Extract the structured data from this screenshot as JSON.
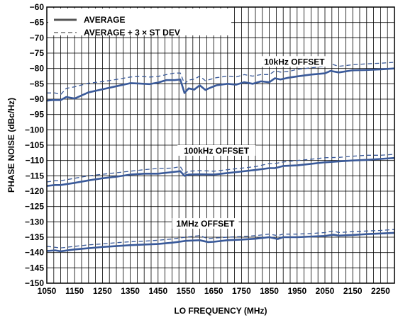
{
  "chart_data": {
    "type": "line",
    "xlabel": "LO FREQUENCY (MHz)",
    "ylabel": "PHASE NOISE (dBc/Hz)",
    "xlim": [
      1050,
      2300
    ],
    "ylim": [
      -150,
      -60
    ],
    "x_ticks": [
      1050,
      1150,
      1250,
      1350,
      1450,
      1550,
      1650,
      1750,
      1850,
      1950,
      2050,
      2150,
      2250
    ],
    "y_ticks": [
      -60,
      -65,
      -70,
      -75,
      -80,
      -85,
      -90,
      -95,
      -100,
      -105,
      -110,
      -115,
      -120,
      -125,
      -130,
      -135,
      -140,
      -145,
      -150
    ],
    "x_tick_labels": [
      "1050",
      "1150",
      "1250",
      "1350",
      "1450",
      "1550",
      "1650",
      "1750",
      "1850",
      "1950",
      "2050",
      "2150",
      "2250"
    ],
    "y_tick_labels": [
      "−60",
      "−65",
      "−70",
      "−75",
      "−80",
      "−85",
      "−90",
      "−95",
      "−100",
      "−105",
      "−110",
      "−115",
      "−120",
      "−125",
      "−130",
      "−135",
      "−140",
      "−145",
      "−150"
    ],
    "grid": true,
    "legend": {
      "position": "top-left",
      "entries": [
        {
          "label": "AVERAGE",
          "style": "solid"
        },
        {
          "label": "AVERAGE + 3 × ST DEV",
          "style": "dashed"
        }
      ]
    },
    "colors": {
      "average": "#3a5a9a",
      "average_3sd": "#3a5a9a",
      "grid": "#000000"
    },
    "annotations": [
      {
        "text": "10kHz OFFSET",
        "x": 1940,
        "y": -78.3
      },
      {
        "text": "100kHz OFFSET",
        "x": 1660,
        "y": -107.3
      },
      {
        "text": "1MHz OFFSET",
        "x": 1620,
        "y": -131.1
      }
    ],
    "series": [
      {
        "group": "10kHz OFFSET",
        "style": "solid",
        "x": [
          1050,
          1070,
          1100,
          1120,
          1150,
          1200,
          1250,
          1300,
          1350,
          1380,
          1420,
          1450,
          1480,
          1510,
          1530,
          1545,
          1560,
          1580,
          1600,
          1620,
          1640,
          1660,
          1700,
          1730,
          1760,
          1790,
          1820,
          1850,
          1870,
          1890,
          1920,
          1950,
          2000,
          2050,
          2070,
          2100,
          2150,
          2200,
          2250,
          2300
        ],
        "y": [
          -90.5,
          -90.3,
          -90.3,
          -89.3,
          -89.8,
          -87.8,
          -86.8,
          -85.8,
          -84.8,
          -84.9,
          -85.1,
          -84.6,
          -83.8,
          -83.8,
          -83.6,
          -88.0,
          -86.5,
          -86.9,
          -85.5,
          -87.0,
          -86.2,
          -85.5,
          -85.0,
          -85.3,
          -84.5,
          -85.0,
          -84.2,
          -84.5,
          -83.2,
          -83.6,
          -83.0,
          -82.6,
          -82.0,
          -81.6,
          -80.8,
          -81.3,
          -80.6,
          -80.5,
          -80.3,
          -80.0
        ]
      },
      {
        "group": "10kHz OFFSET",
        "style": "dashed",
        "x": [
          1050,
          1080,
          1100,
          1120,
          1150,
          1200,
          1250,
          1300,
          1350,
          1380,
          1420,
          1450,
          1480,
          1510,
          1530,
          1545,
          1560,
          1580,
          1600,
          1620,
          1640,
          1660,
          1700,
          1730,
          1760,
          1790,
          1820,
          1850,
          1870,
          1890,
          1920,
          1950,
          2000,
          2050,
          2070,
          2100,
          2150,
          2200,
          2250,
          2300
        ],
        "y": [
          -88.0,
          -88.0,
          -88.5,
          -86.5,
          -86.0,
          -84.8,
          -84.3,
          -83.6,
          -82.8,
          -82.6,
          -82.8,
          -82.6,
          -82.0,
          -81.5,
          -81.5,
          -85.0,
          -83.8,
          -83.5,
          -82.5,
          -84.0,
          -83.5,
          -83.0,
          -82.5,
          -82.8,
          -82.0,
          -82.5,
          -82.0,
          -82.0,
          -80.8,
          -81.2,
          -81.0,
          -80.3,
          -79.8,
          -79.3,
          -78.5,
          -79.3,
          -78.8,
          -78.5,
          -78.3,
          -78.0
        ]
      },
      {
        "group": "100kHz OFFSET",
        "style": "solid",
        "x": [
          1050,
          1080,
          1100,
          1150,
          1200,
          1250,
          1300,
          1350,
          1400,
          1450,
          1500,
          1530,
          1545,
          1560,
          1600,
          1650,
          1700,
          1750,
          1800,
          1850,
          1870,
          1900,
          1950,
          2000,
          2050,
          2100,
          2150,
          2200,
          2250,
          2300
        ],
        "y": [
          -118.3,
          -118.0,
          -118.0,
          -117.3,
          -116.5,
          -115.8,
          -115.3,
          -114.6,
          -114.3,
          -114.3,
          -113.8,
          -113.5,
          -115.0,
          -114.6,
          -114.5,
          -114.6,
          -114.1,
          -113.6,
          -113.1,
          -112.5,
          -112.5,
          -111.8,
          -111.6,
          -111.1,
          -110.6,
          -110.3,
          -110.0,
          -109.8,
          -109.5,
          -109.2
        ]
      },
      {
        "group": "100kHz OFFSET",
        "style": "dashed",
        "x": [
          1050,
          1080,
          1100,
          1150,
          1200,
          1250,
          1300,
          1350,
          1400,
          1450,
          1500,
          1530,
          1545,
          1560,
          1600,
          1650,
          1700,
          1750,
          1800,
          1850,
          1870,
          1900,
          1950,
          2000,
          2050,
          2100,
          2150,
          2200,
          2250,
          2300
        ],
        "y": [
          -117.0,
          -116.6,
          -116.6,
          -115.8,
          -115.0,
          -114.5,
          -114.0,
          -113.5,
          -113.0,
          -112.6,
          -112.5,
          -112.0,
          -114.2,
          -113.5,
          -113.3,
          -113.5,
          -113.0,
          -112.5,
          -112.0,
          -111.0,
          -111.0,
          -110.5,
          -110.0,
          -109.6,
          -109.1,
          -109.0,
          -108.6,
          -108.3,
          -108.3,
          -108.0
        ]
      },
      {
        "group": "1MHz OFFSET",
        "style": "solid",
        "x": [
          1050,
          1080,
          1100,
          1150,
          1200,
          1250,
          1300,
          1350,
          1400,
          1450,
          1500,
          1550,
          1600,
          1630,
          1650,
          1700,
          1750,
          1800,
          1850,
          1880,
          1900,
          1950,
          2000,
          2050,
          2080,
          2100,
          2150,
          2200,
          2250,
          2300
        ],
        "y": [
          -139.5,
          -139.3,
          -139.6,
          -139.0,
          -138.6,
          -138.2,
          -137.9,
          -137.6,
          -137.4,
          -137.2,
          -136.8,
          -136.2,
          -136.0,
          -136.6,
          -136.5,
          -136.0,
          -135.8,
          -135.5,
          -135.0,
          -135.6,
          -135.0,
          -135.0,
          -134.8,
          -134.6,
          -134.2,
          -134.5,
          -134.3,
          -134.0,
          -133.8,
          -133.6
        ]
      },
      {
        "group": "1MHz OFFSET",
        "style": "dashed",
        "x": [
          1050,
          1080,
          1100,
          1150,
          1200,
          1250,
          1300,
          1350,
          1400,
          1450,
          1500,
          1550,
          1600,
          1630,
          1650,
          1700,
          1750,
          1800,
          1850,
          1880,
          1900,
          1950,
          2000,
          2050,
          2080,
          2100,
          2150,
          2200,
          2250,
          2300
        ],
        "y": [
          -138.0,
          -138.3,
          -138.5,
          -138.0,
          -137.5,
          -137.2,
          -136.8,
          -136.5,
          -136.3,
          -136.0,
          -135.6,
          -135.0,
          -134.5,
          -135.5,
          -135.3,
          -135.0,
          -134.8,
          -134.5,
          -134.0,
          -134.5,
          -134.0,
          -134.0,
          -133.8,
          -133.5,
          -133.0,
          -133.5,
          -133.2,
          -133.0,
          -132.8,
          -132.5
        ]
      }
    ]
  }
}
